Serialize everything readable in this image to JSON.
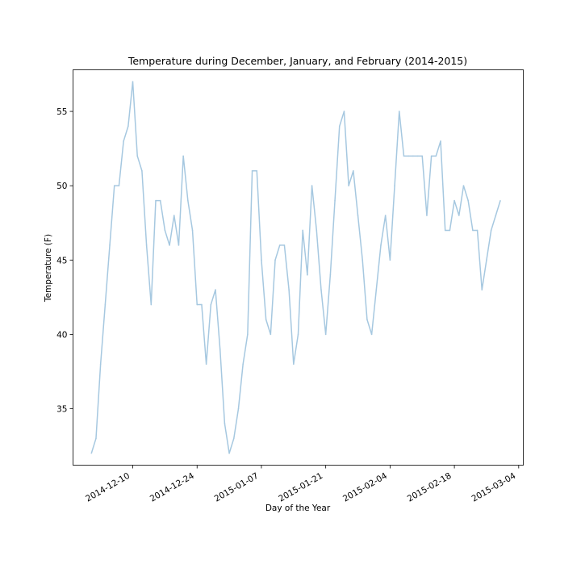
{
  "chart_data": {
    "type": "line",
    "title": "Temperature during December, January, and February (2014-2015)",
    "xlabel": "Day of the Year",
    "ylabel": "Temperature (F)",
    "x_ticks": [
      "2014-12-10",
      "2014-12-24",
      "2015-01-07",
      "2015-01-21",
      "2015-02-04",
      "2015-02-18",
      "2015-03-04"
    ],
    "y_ticks": [
      35,
      40,
      45,
      50,
      55
    ],
    "xlim": [
      "2014-11-27",
      "2015-03-05"
    ],
    "ylim": [
      31.2,
      57.8
    ],
    "grid": false,
    "legend": "none",
    "line_color": "#a6c8e0",
    "series": [
      {
        "x": [
          "2014-12-01",
          "2014-12-02",
          "2014-12-03",
          "2014-12-04",
          "2014-12-05",
          "2014-12-06",
          "2014-12-07",
          "2014-12-08",
          "2014-12-09",
          "2014-12-10",
          "2014-12-11",
          "2014-12-12",
          "2014-12-13",
          "2014-12-14",
          "2014-12-15",
          "2014-12-16",
          "2014-12-17",
          "2014-12-18",
          "2014-12-19",
          "2014-12-20",
          "2014-12-21",
          "2014-12-22",
          "2014-12-23",
          "2014-12-24",
          "2014-12-25",
          "2014-12-26",
          "2014-12-27",
          "2014-12-28",
          "2014-12-29",
          "2014-12-30",
          "2014-12-31",
          "2015-01-01",
          "2015-01-02",
          "2015-01-03",
          "2015-01-04",
          "2015-01-05",
          "2015-01-06",
          "2015-01-07",
          "2015-01-08",
          "2015-01-09",
          "2015-01-10",
          "2015-01-11",
          "2015-01-12",
          "2015-01-13",
          "2015-01-14",
          "2015-01-15",
          "2015-01-16",
          "2015-01-17",
          "2015-01-18",
          "2015-01-19",
          "2015-01-20",
          "2015-01-21",
          "2015-01-22",
          "2015-01-23",
          "2015-01-24",
          "2015-01-25",
          "2015-01-26",
          "2015-01-27",
          "2015-01-28",
          "2015-01-29",
          "2015-01-30",
          "2015-01-31",
          "2015-02-01",
          "2015-02-02",
          "2015-02-03",
          "2015-02-04",
          "2015-02-05",
          "2015-02-06",
          "2015-02-07",
          "2015-02-08",
          "2015-02-09",
          "2015-02-10",
          "2015-02-11",
          "2015-02-12",
          "2015-02-13",
          "2015-02-14",
          "2015-02-15",
          "2015-02-16",
          "2015-02-17",
          "2015-02-18",
          "2015-02-19",
          "2015-02-20",
          "2015-02-21",
          "2015-02-22",
          "2015-02-23",
          "2015-02-24",
          "2015-02-25",
          "2015-02-26",
          "2015-02-27",
          "2015-02-28"
        ],
        "y": [
          32,
          33,
          38,
          42,
          46,
          50,
          50,
          53,
          54,
          57,
          52,
          51,
          46,
          42,
          49,
          49,
          47,
          46,
          48,
          46,
          52,
          49,
          47,
          42,
          42,
          38,
          42,
          43,
          39,
          34,
          32,
          33,
          35,
          38,
          40,
          51,
          51,
          45,
          41,
          40,
          45,
          46,
          46,
          43,
          38,
          40,
          47,
          44,
          50,
          47,
          43,
          40,
          44,
          49,
          54,
          55,
          50,
          51,
          48,
          45,
          41,
          40,
          43,
          46,
          48,
          45,
          50,
          55,
          52,
          52,
          52,
          52,
          52,
          48,
          52,
          52,
          53,
          47,
          47,
          49,
          48,
          50,
          49,
          47,
          47,
          43,
          45,
          47,
          48,
          49
        ]
      }
    ]
  }
}
